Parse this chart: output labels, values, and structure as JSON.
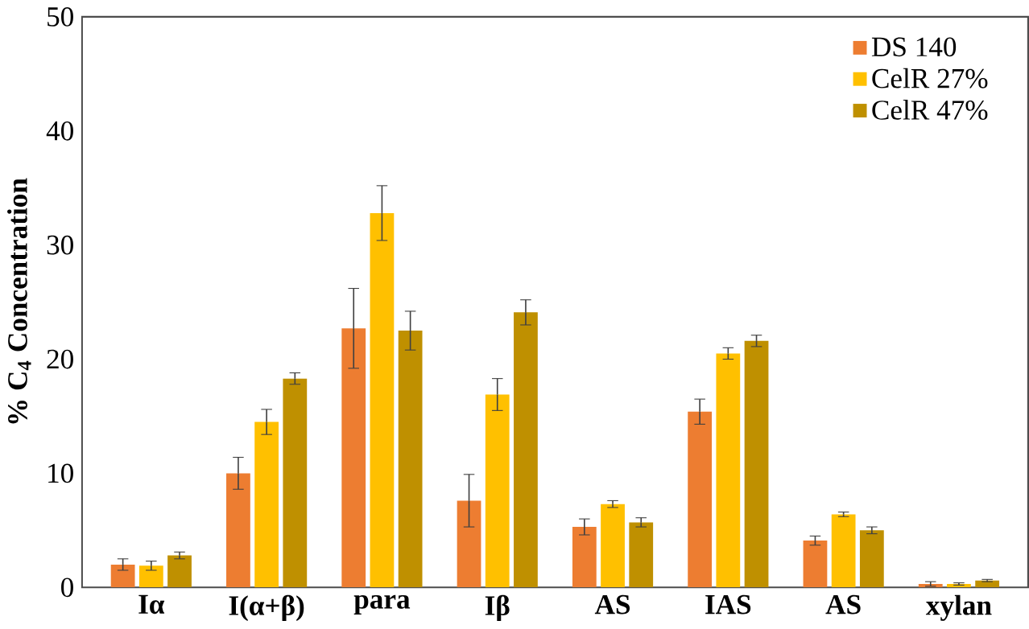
{
  "chart_data": {
    "type": "bar",
    "ylabel": "% C$_{4}$ Concentration",
    "categories": [
      "Iα",
      "I(α+β)",
      "para",
      "Iβ",
      "AS",
      "IAS",
      "AS",
      "xylan"
    ],
    "series": [
      {
        "name": "DS 140",
        "color": "#ed7d31",
        "values": [
          2.0,
          10.0,
          22.7,
          7.6,
          5.3,
          15.4,
          4.1,
          0.3
        ],
        "errors": [
          0.5,
          1.4,
          3.5,
          2.3,
          0.7,
          1.1,
          0.4,
          0.2
        ]
      },
      {
        "name": "CelR 27%",
        "color": "#ffc000",
        "values": [
          1.9,
          14.5,
          32.8,
          16.9,
          7.3,
          20.5,
          6.4,
          0.3
        ],
        "errors": [
          0.4,
          1.1,
          2.4,
          1.4,
          0.3,
          0.5,
          0.2,
          0.1
        ]
      },
      {
        "name": "CelR 47%",
        "color": "#bf9000",
        "values": [
          2.8,
          18.3,
          22.5,
          24.1,
          5.7,
          21.6,
          5.0,
          0.6
        ],
        "errors": [
          0.3,
          0.5,
          1.7,
          1.1,
          0.4,
          0.5,
          0.3,
          0.1
        ]
      }
    ],
    "ylim": [
      0,
      50
    ],
    "yticks": [
      0,
      10,
      20,
      30,
      40,
      50
    ],
    "legend": "top right",
    "grid": false
  }
}
